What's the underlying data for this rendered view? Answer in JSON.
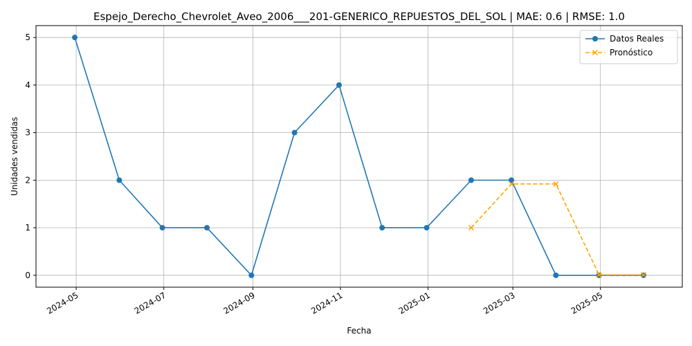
{
  "chart_data": {
    "type": "line",
    "title": "Espejo_Derecho_Chevrolet_Aveo_2006___201-GENERICO_REPUESTOS_DEL_SOL | MAE: 0.6 | RMSE: 1.0",
    "xlabel": "Fecha",
    "ylabel": "Unidades vendidas",
    "x_type": "date",
    "xlim": [
      "2024-04-03",
      "2025-06-27"
    ],
    "ylim": [
      -0.25,
      5.25
    ],
    "x_ticks": [
      "2024-05",
      "2024-07",
      "2024-09",
      "2024-11",
      "2025-01",
      "2025-03",
      "2025-05"
    ],
    "y_ticks": [
      0,
      1,
      2,
      3,
      4,
      5
    ],
    "grid": true,
    "legend_position": "top-right",
    "series": [
      {
        "name": "Datos Reales",
        "color": "#1f77b4",
        "marker": "circle",
        "line_style": "solid",
        "x": [
          "2024-04-30",
          "2024-05-31",
          "2024-06-30",
          "2024-07-31",
          "2024-08-31",
          "2024-09-30",
          "2024-10-31",
          "2024-11-30",
          "2024-12-31",
          "2025-01-31",
          "2025-02-28",
          "2025-03-31",
          "2025-04-30",
          "2025-05-31"
        ],
        "values": [
          5,
          2,
          1,
          1,
          0,
          3,
          4,
          1,
          1,
          2,
          2,
          0,
          0,
          0
        ]
      },
      {
        "name": "Pronóstico",
        "color": "#ffa500",
        "marker": "x",
        "line_style": "dashed",
        "x": [
          "2025-01-31",
          "2025-02-28",
          "2025-03-31",
          "2025-04-30",
          "2025-05-31"
        ],
        "values": [
          1.0,
          1.92,
          1.92,
          0.01,
          0.01
        ]
      }
    ]
  }
}
